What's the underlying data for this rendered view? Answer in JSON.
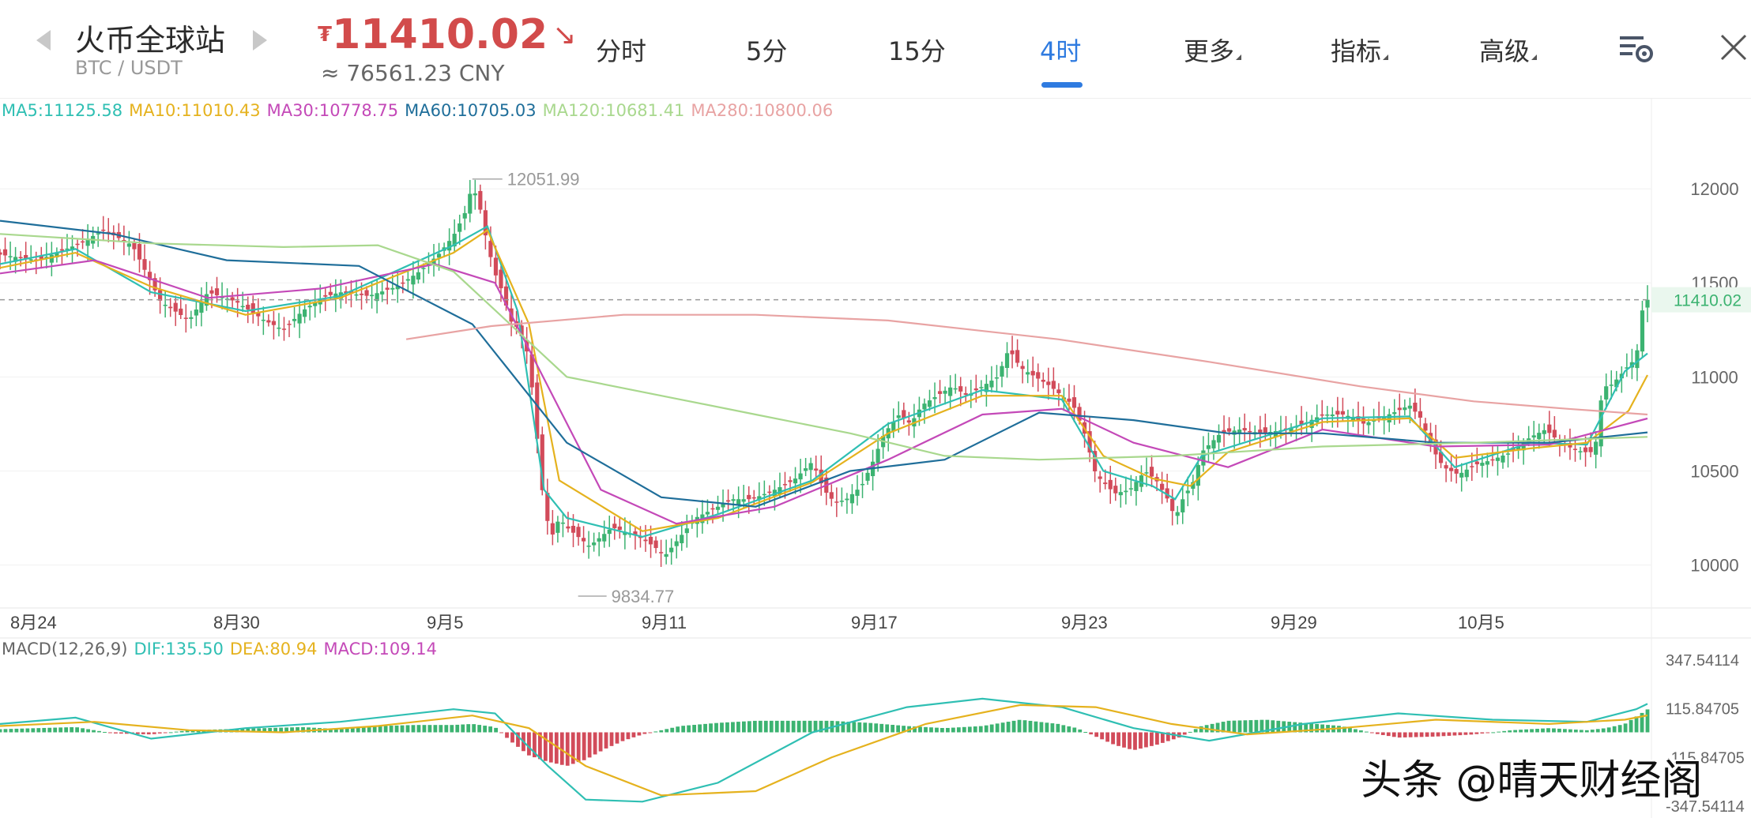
{
  "header": {
    "exchange": "火币全球站",
    "pair": "BTC / USDT",
    "currency_symbol": "₮",
    "last_price": "11410.02",
    "trend_icon": "down-right-arrow-icon",
    "cny_price": "≈ 76561.23 CNY"
  },
  "tabs": [
    {
      "label": "分时",
      "active": false
    },
    {
      "label": "5分",
      "active": false
    },
    {
      "label": "15分",
      "active": false
    },
    {
      "label": "4时",
      "active": true
    },
    {
      "label": "更多",
      "active": false,
      "dropdown": true
    },
    {
      "label": "指标",
      "active": false,
      "dropdown": true
    },
    {
      "label": "高级",
      "active": false,
      "dropdown": true
    }
  ],
  "icons": {
    "settings": "chart-settings-icon",
    "close": "close-icon",
    "prev": "prev-arrow-icon",
    "next": "next-arrow-icon"
  },
  "colors": {
    "up": "#3cb371",
    "down": "#d24b5a",
    "price_red": "#d24b4b",
    "active_tab": "#2f7be0",
    "ma5": "#2fbfb3",
    "ma10": "#e5b21e",
    "ma30": "#c449b8",
    "ma60": "#1f6e9a",
    "ma120": "#a9d88e",
    "ma280": "#e8a3a3"
  },
  "ma_legend": {
    "ma5": "MA5:11125.58",
    "ma10": "MA10:11010.43",
    "ma30": "MA30:10778.75",
    "ma60": "MA60:10705.03",
    "ma120": "MA120:10681.41",
    "ma280": "MA280:10800.06"
  },
  "macd_legend": {
    "title": "MACD(12,26,9)",
    "dif": "DIF:135.50",
    "dea": "DEA:80.94",
    "macd": "MACD:109.14"
  },
  "watermark": "头条 @晴天财经阁",
  "chart_data": {
    "type": "candlestick",
    "ylim": [
      9780,
      12290
    ],
    "y_ticks": [
      "12000",
      "11500",
      "11000",
      "10500",
      "10000"
    ],
    "x_labels": [
      "8月24",
      "8月30",
      "9月5",
      "9月11",
      "9月17",
      "9月23",
      "9月29",
      "10月5"
    ],
    "current_price_label": "11410.02",
    "current_price": 11410.02,
    "high_label": "12051.99",
    "high": 12051.99,
    "low_label": "9834.77",
    "low": 9834.77,
    "close_path": [
      [
        0,
        11650
      ],
      [
        20,
        11620
      ],
      [
        40,
        11700
      ],
      [
        55,
        11780
      ],
      [
        70,
        11700
      ],
      [
        85,
        11400
      ],
      [
        100,
        11300
      ],
      [
        110,
        11450
      ],
      [
        125,
        11400
      ],
      [
        140,
        11300
      ],
      [
        150,
        11250
      ],
      [
        160,
        11350
      ],
      [
        170,
        11420
      ],
      [
        180,
        11450
      ],
      [
        195,
        11430
      ],
      [
        210,
        11480
      ],
      [
        222,
        11560
      ],
      [
        232,
        11650
      ],
      [
        240,
        11750
      ],
      [
        246,
        11870
      ],
      [
        250,
        12020
      ],
      [
        254,
        11900
      ],
      [
        258,
        11700
      ],
      [
        262,
        11550
      ],
      [
        266,
        11450
      ],
      [
        270,
        11300
      ],
      [
        275,
        11250
      ],
      [
        280,
        11100
      ],
      [
        284,
        10700
      ],
      [
        288,
        10300
      ],
      [
        292,
        10150
      ],
      [
        296,
        10250
      ],
      [
        300,
        10200
      ],
      [
        306,
        10150
      ],
      [
        312,
        10100
      ],
      [
        318,
        10150
      ],
      [
        324,
        10200
      ],
      [
        330,
        10180
      ],
      [
        338,
        10150
      ],
      [
        346,
        10100
      ],
      [
        352,
        10050
      ],
      [
        360,
        10150
      ],
      [
        368,
        10250
      ],
      [
        378,
        10300
      ],
      [
        388,
        10350
      ],
      [
        398,
        10350
      ],
      [
        410,
        10400
      ],
      [
        420,
        10450
      ],
      [
        430,
        10550
      ],
      [
        436,
        10400
      ],
      [
        442,
        10330
      ],
      [
        448,
        10350
      ],
      [
        456,
        10420
      ],
      [
        462,
        10550
      ],
      [
        468,
        10700
      ],
      [
        476,
        10800
      ],
      [
        482,
        10750
      ],
      [
        488,
        10850
      ],
      [
        496,
        10900
      ],
      [
        504,
        10950
      ],
      [
        512,
        10900
      ],
      [
        520,
        10950
      ],
      [
        528,
        11000
      ],
      [
        534,
        11150
      ],
      [
        540,
        11050
      ],
      [
        548,
        11000
      ],
      [
        556,
        10950
      ],
      [
        562,
        10900
      ],
      [
        568,
        10850
      ],
      [
        574,
        10700
      ],
      [
        580,
        10480
      ],
      [
        590,
        10380
      ],
      [
        598,
        10400
      ],
      [
        606,
        10500
      ],
      [
        612,
        10450
      ],
      [
        618,
        10350
      ],
      [
        622,
        10250
      ],
      [
        626,
        10350
      ],
      [
        632,
        10450
      ],
      [
        636,
        10600
      ],
      [
        646,
        10700
      ],
      [
        656,
        10720
      ],
      [
        668,
        10700
      ],
      [
        680,
        10720
      ],
      [
        690,
        10750
      ],
      [
        700,
        10800
      ],
      [
        712,
        10800
      ],
      [
        722,
        10750
      ],
      [
        730,
        10780
      ],
      [
        740,
        10820
      ],
      [
        746,
        10850
      ],
      [
        752,
        10780
      ],
      [
        758,
        10620
      ],
      [
        764,
        10520
      ],
      [
        772,
        10480
      ],
      [
        780,
        10530
      ],
      [
        790,
        10560
      ],
      [
        800,
        10600
      ],
      [
        810,
        10680
      ],
      [
        818,
        10720
      ],
      [
        826,
        10650
      ],
      [
        832,
        10620
      ],
      [
        838,
        10600
      ],
      [
        843,
        10600
      ],
      [
        846,
        10700
      ],
      [
        848,
        10950
      ],
      [
        852,
        10950
      ],
      [
        857,
        11000
      ],
      [
        861,
        11050
      ],
      [
        866,
        11100
      ],
      [
        870,
        11410
      ]
    ],
    "series": [
      {
        "name": "MA5",
        "values": [
          [
            0,
            11600
          ],
          [
            40,
            11680
          ],
          [
            80,
            11450
          ],
          [
            130,
            11350
          ],
          [
            180,
            11430
          ],
          [
            240,
            11700
          ],
          [
            258,
            11800
          ],
          [
            274,
            11350
          ],
          [
            288,
            10400
          ],
          [
            300,
            10250
          ],
          [
            340,
            10150
          ],
          [
            380,
            10270
          ],
          [
            430,
            10450
          ],
          [
            470,
            10750
          ],
          [
            520,
            10930
          ],
          [
            562,
            10880
          ],
          [
            584,
            10500
          ],
          [
            610,
            10420
          ],
          [
            622,
            10350
          ],
          [
            636,
            10580
          ],
          [
            700,
            10780
          ],
          [
            746,
            10790
          ],
          [
            770,
            10520
          ],
          [
            810,
            10650
          ],
          [
            840,
            10640
          ],
          [
            860,
            11030
          ],
          [
            872,
            11125
          ]
        ]
      },
      {
        "name": "MA10",
        "values": [
          [
            0,
            11580
          ],
          [
            40,
            11660
          ],
          [
            80,
            11480
          ],
          [
            130,
            11330
          ],
          [
            180,
            11420
          ],
          [
            240,
            11660
          ],
          [
            258,
            11780
          ],
          [
            280,
            11280
          ],
          [
            296,
            10450
          ],
          [
            340,
            10180
          ],
          [
            380,
            10250
          ],
          [
            430,
            10440
          ],
          [
            470,
            10700
          ],
          [
            520,
            10900
          ],
          [
            562,
            10900
          ],
          [
            584,
            10580
          ],
          [
            610,
            10460
          ],
          [
            630,
            10420
          ],
          [
            650,
            10600
          ],
          [
            700,
            10760
          ],
          [
            746,
            10780
          ],
          [
            770,
            10570
          ],
          [
            810,
            10620
          ],
          [
            840,
            10650
          ],
          [
            862,
            10820
          ],
          [
            872,
            11010
          ]
        ]
      },
      {
        "name": "MA30",
        "values": [
          [
            0,
            11550
          ],
          [
            50,
            11620
          ],
          [
            110,
            11420
          ],
          [
            170,
            11470
          ],
          [
            230,
            11600
          ],
          [
            262,
            11500
          ],
          [
            290,
            10950
          ],
          [
            318,
            10400
          ],
          [
            358,
            10220
          ],
          [
            410,
            10310
          ],
          [
            470,
            10560
          ],
          [
            520,
            10800
          ],
          [
            562,
            10830
          ],
          [
            600,
            10650
          ],
          [
            650,
            10520
          ],
          [
            700,
            10720
          ],
          [
            760,
            10630
          ],
          [
            820,
            10640
          ],
          [
            872,
            10779
          ]
        ]
      },
      {
        "name": "MA60",
        "values": [
          [
            0,
            11830
          ],
          [
            60,
            11760
          ],
          [
            120,
            11620
          ],
          [
            190,
            11590
          ],
          [
            250,
            11280
          ],
          [
            300,
            10650
          ],
          [
            350,
            10360
          ],
          [
            400,
            10310
          ],
          [
            450,
            10500
          ],
          [
            500,
            10560
          ],
          [
            550,
            10810
          ],
          [
            600,
            10770
          ],
          [
            650,
            10700
          ],
          [
            700,
            10700
          ],
          [
            760,
            10650
          ],
          [
            820,
            10650
          ],
          [
            872,
            10705
          ]
        ]
      },
      {
        "name": "MA120",
        "values": [
          [
            0,
            11760
          ],
          [
            80,
            11710
          ],
          [
            150,
            11690
          ],
          [
            200,
            11700
          ],
          [
            240,
            11560
          ],
          [
            300,
            11000
          ],
          [
            360,
            10880
          ],
          [
            400,
            10800
          ],
          [
            450,
            10700
          ],
          [
            500,
            10580
          ],
          [
            550,
            10560
          ],
          [
            620,
            10580
          ],
          [
            700,
            10630
          ],
          [
            780,
            10650
          ],
          [
            872,
            10681
          ]
        ]
      },
      {
        "name": "MA280",
        "values": [
          [
            215,
            11200
          ],
          [
            260,
            11270
          ],
          [
            330,
            11330
          ],
          [
            400,
            11330
          ],
          [
            470,
            11300
          ],
          [
            560,
            11200
          ],
          [
            640,
            11080
          ],
          [
            720,
            10950
          ],
          [
            780,
            10870
          ],
          [
            830,
            10830
          ],
          [
            872,
            10800
          ]
        ]
      }
    ],
    "macd": {
      "ylim_labels": [
        "347.54114",
        "115.84705",
        "-115.84705",
        "-347.54114"
      ],
      "ylim": [
        -347.54114,
        347.54114
      ],
      "dif": [
        [
          0,
          40
        ],
        [
          40,
          70
        ],
        [
          80,
          -30
        ],
        [
          130,
          20
        ],
        [
          180,
          50
        ],
        [
          240,
          110
        ],
        [
          262,
          90
        ],
        [
          290,
          -160
        ],
        [
          310,
          -320
        ],
        [
          340,
          -330
        ],
        [
          380,
          -240
        ],
        [
          430,
          0
        ],
        [
          480,
          120
        ],
        [
          520,
          160
        ],
        [
          562,
          120
        ],
        [
          600,
          20
        ],
        [
          640,
          -40
        ],
        [
          690,
          40
        ],
        [
          740,
          90
        ],
        [
          790,
          60
        ],
        [
          840,
          50
        ],
        [
          866,
          110
        ],
        [
          872,
          135.5
        ]
      ],
      "dea": [
        [
          0,
          30
        ],
        [
          50,
          50
        ],
        [
          100,
          10
        ],
        [
          150,
          0
        ],
        [
          200,
          30
        ],
        [
          250,
          80
        ],
        [
          280,
          20
        ],
        [
          310,
          -160
        ],
        [
          350,
          -300
        ],
        [
          400,
          -280
        ],
        [
          440,
          -120
        ],
        [
          490,
          40
        ],
        [
          540,
          130
        ],
        [
          580,
          120
        ],
        [
          620,
          40
        ],
        [
          660,
          -10
        ],
        [
          710,
          20
        ],
        [
          760,
          60
        ],
        [
          820,
          40
        ],
        [
          860,
          60
        ],
        [
          872,
          80.94
        ]
      ],
      "hist": [
        [
          0,
          15
        ],
        [
          20,
          20
        ],
        [
          40,
          25
        ],
        [
          60,
          -5
        ],
        [
          80,
          -10
        ],
        [
          100,
          10
        ],
        [
          120,
          15
        ],
        [
          140,
          20
        ],
        [
          160,
          25
        ],
        [
          180,
          15
        ],
        [
          200,
          30
        ],
        [
          220,
          35
        ],
        [
          240,
          35
        ],
        [
          250,
          40
        ],
        [
          262,
          25
        ],
        [
          270,
          -40
        ],
        [
          280,
          -110
        ],
        [
          290,
          -140
        ],
        [
          300,
          -160
        ],
        [
          310,
          -130
        ],
        [
          320,
          -80
        ],
        [
          330,
          -40
        ],
        [
          340,
          -10
        ],
        [
          350,
          10
        ],
        [
          360,
          30
        ],
        [
          380,
          45
        ],
        [
          400,
          55
        ],
        [
          420,
          55
        ],
        [
          440,
          55
        ],
        [
          460,
          45
        ],
        [
          480,
          30
        ],
        [
          500,
          20
        ],
        [
          520,
          30
        ],
        [
          540,
          60
        ],
        [
          560,
          40
        ],
        [
          570,
          20
        ],
        [
          580,
          -20
        ],
        [
          590,
          -60
        ],
        [
          600,
          -85
        ],
        [
          612,
          -60
        ],
        [
          624,
          -25
        ],
        [
          636,
          30
        ],
        [
          650,
          55
        ],
        [
          670,
          60
        ],
        [
          690,
          45
        ],
        [
          710,
          30
        ],
        [
          720,
          10
        ],
        [
          730,
          -10
        ],
        [
          740,
          -25
        ],
        [
          760,
          -20
        ],
        [
          780,
          -10
        ],
        [
          800,
          10
        ],
        [
          820,
          20
        ],
        [
          840,
          10
        ],
        [
          850,
          20
        ],
        [
          860,
          40
        ],
        [
          872,
          109.14
        ]
      ]
    }
  }
}
